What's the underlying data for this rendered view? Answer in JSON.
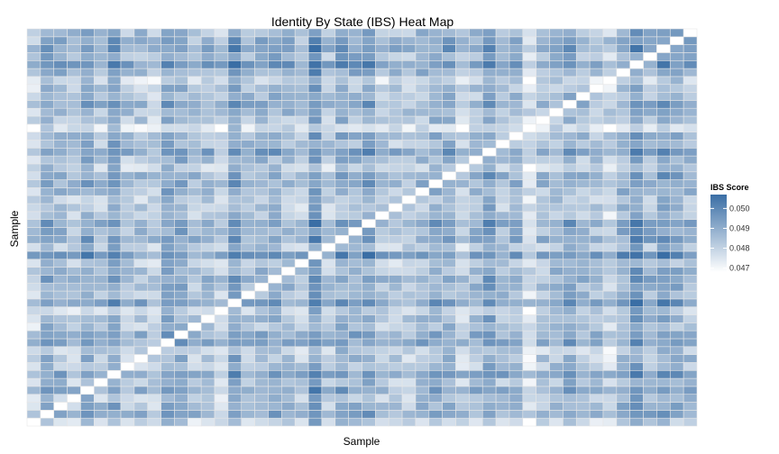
{
  "chart_data": {
    "type": "heatmap",
    "title": "Identity By State (IBS) Heat Map",
    "xlabel": "Sample",
    "ylabel": "Sample",
    "n_samples": 50,
    "legend": {
      "title": "IBS Score",
      "ticks": [
        "0.050",
        "0.049",
        "0.048",
        "0.047"
      ],
      "tick_values": [
        0.05,
        0.049,
        0.048,
        0.047
      ],
      "min": 0.0468,
      "max": 0.0507,
      "low_color": "#ffffff",
      "high_color": "#3a6ea5",
      "placement": "right"
    },
    "diagonal_color": "#ffffff",
    "cell_border_color": "#e6e6e6",
    "value_range": [
      0.0468,
      0.0507
    ],
    "grid": false
  },
  "x_axis": {
    "title": "Sample"
  },
  "y_axis": {
    "title": "Sample"
  },
  "legend_title": "IBS Score",
  "title": "Identity By State (IBS) Heat Map"
}
